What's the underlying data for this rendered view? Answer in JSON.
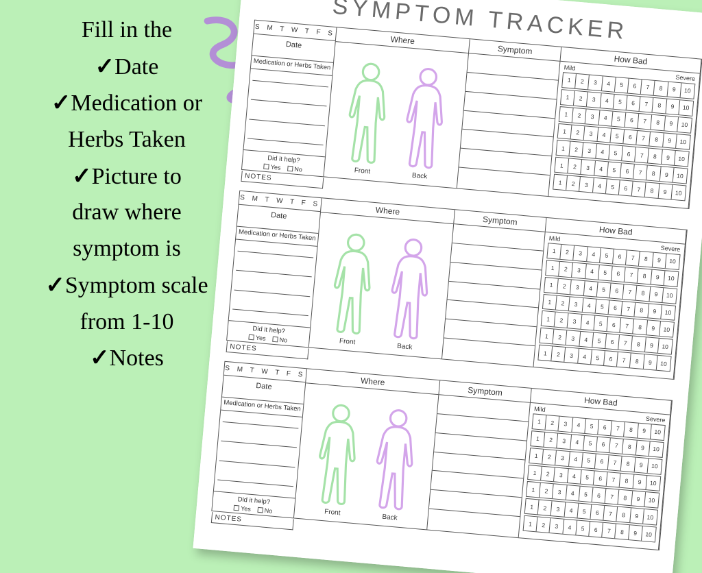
{
  "colors": {
    "background": "#bbf0b7",
    "squiggle": "#b38fd6",
    "body_front_stroke": "#a5e2a8",
    "body_back_stroke": "#d3a5ea",
    "ink": "#444444",
    "paper": "#ffffff",
    "promo_text": "#000000"
  },
  "promo": {
    "heading": "Fill in the",
    "items": [
      "Date",
      "Medication or",
      "Herbs Taken",
      "Picture to",
      "draw where",
      "symptom is",
      "Symptom scale",
      "from 1-10",
      "Notes"
    ],
    "checkmark_lines": [
      0,
      1,
      3,
      6,
      8
    ]
  },
  "sheet": {
    "title": "SYMPTOM TRACKER",
    "entries_count": 3,
    "left": {
      "days": "S M T W T F S",
      "date_label": "Date",
      "med_label": "Medication or Herbs Taken",
      "med_lines": 4,
      "help_label": "Did it help?",
      "help_yes": "Yes",
      "help_no": "No",
      "notes_label": "NOTES"
    },
    "where": {
      "heading": "Where",
      "front_label": "Front",
      "back_label": "Back"
    },
    "symptom": {
      "heading": "Symptom",
      "rows": 7
    },
    "howbad": {
      "heading": "How Bad",
      "mild_label": "Mild",
      "severe_label": "Severe",
      "scale": [
        1,
        2,
        3,
        4,
        5,
        6,
        7,
        8,
        9,
        10
      ],
      "rows": 7
    }
  }
}
